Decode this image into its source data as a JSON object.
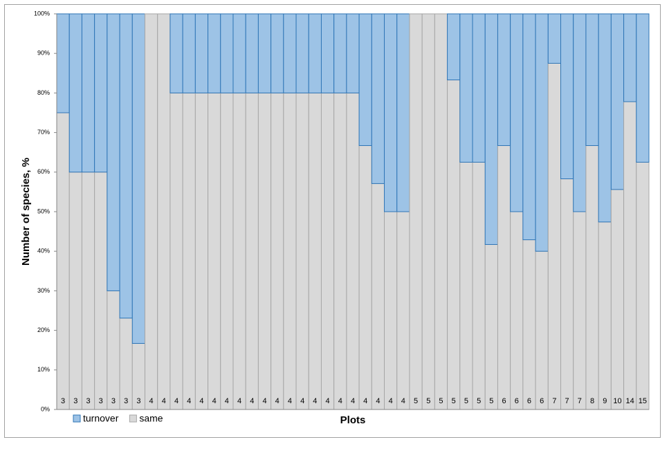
{
  "chart_data": {
    "type": "stacked_bar",
    "x_label": "Plots",
    "y_label": "Number of species, %",
    "categories": [
      "3",
      "3",
      "3",
      "3",
      "3",
      "3",
      "3",
      "4",
      "4",
      "4",
      "4",
      "4",
      "4",
      "4",
      "4",
      "4",
      "4",
      "4",
      "4",
      "4",
      "4",
      "4",
      "4",
      "4",
      "4",
      "4",
      "4",
      "4",
      "5",
      "5",
      "5",
      "5",
      "5",
      "5",
      "5",
      "6",
      "6",
      "6",
      "6",
      "7",
      "7",
      "7",
      "8",
      "9",
      "10",
      "14",
      "15"
    ],
    "series": [
      {
        "name": "turnover",
        "color": "#9dc3e6",
        "edge": "#2e75b6",
        "values": [
          25,
          40,
          40,
          40,
          70,
          76.9,
          83.3,
          0,
          0,
          20,
          20,
          20,
          20,
          20,
          20,
          20,
          20,
          20,
          20,
          20,
          20,
          20,
          20,
          20,
          33.3,
          42.9,
          50,
          50,
          0,
          0,
          0,
          16.7,
          37.5,
          37.5,
          58.3,
          33.3,
          50,
          57.1,
          60,
          12.5,
          41.7,
          50,
          33.3,
          52.6,
          44.4,
          22.2,
          37.5
        ]
      },
      {
        "name": "same",
        "color": "#d9d9d9",
        "edge": "#a6a6a6",
        "values": [
          75,
          60,
          60,
          60,
          30,
          23.1,
          16.7,
          100,
          100,
          80,
          80,
          80,
          80,
          80,
          80,
          80,
          80,
          80,
          80,
          80,
          80,
          80,
          80,
          80,
          66.7,
          57.1,
          50,
          50,
          100,
          100,
          100,
          83.3,
          62.5,
          62.5,
          41.7,
          66.7,
          50,
          42.9,
          40,
          87.5,
          58.3,
          50,
          66.7,
          47.4,
          55.6,
          77.8,
          62.5
        ]
      }
    ],
    "ylim": [
      0,
      100
    ],
    "yticks": [
      {
        "value": 0,
        "label": "0%"
      },
      {
        "value": 10,
        "label": "10%"
      },
      {
        "value": 20,
        "label": "20%"
      },
      {
        "value": 30,
        "label": "30%"
      },
      {
        "value": 40,
        "label": "40%"
      },
      {
        "value": 50,
        "label": "50%"
      },
      {
        "value": 60,
        "label": "60%"
      },
      {
        "value": 70,
        "label": "70%"
      },
      {
        "value": 80,
        "label": "80%"
      },
      {
        "value": 90,
        "label": "90%"
      },
      {
        "value": 100,
        "label": "100%"
      }
    ],
    "legend": "bottom-left"
  }
}
